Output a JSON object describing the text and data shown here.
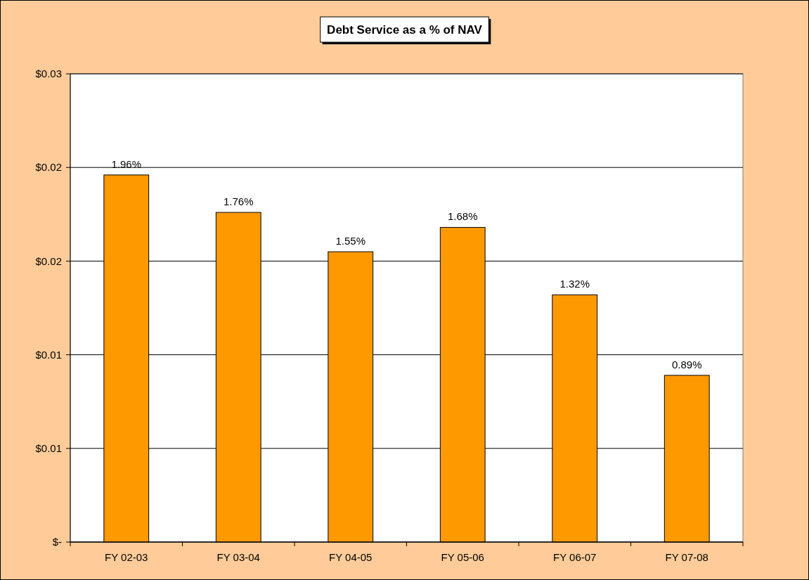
{
  "chart_data": {
    "type": "bar",
    "title": "Debt Service as a % of NAV",
    "categories": [
      "FY 02-03",
      "FY 03-04",
      "FY 04-05",
      "FY 05-06",
      "FY 06-07",
      "FY 07-08"
    ],
    "values": [
      0.0196,
      0.0176,
      0.0155,
      0.0168,
      0.0132,
      0.0089
    ],
    "value_labels": [
      "1.96%",
      "1.76%",
      "1.55%",
      "1.68%",
      "1.32%",
      "0.89%"
    ],
    "color": "#ff9900",
    "ylim": [
      0,
      0.025
    ],
    "yticks": [
      {
        "value": 0,
        "label": "$-"
      },
      {
        "value": 0.005,
        "label": "$0.01"
      },
      {
        "value": 0.01,
        "label": "$0.01"
      },
      {
        "value": 0.015,
        "label": "$0.02"
      },
      {
        "value": 0.02,
        "label": "$0.02"
      },
      {
        "value": 0.025,
        "label": "$0.03"
      }
    ],
    "grid": "y"
  }
}
